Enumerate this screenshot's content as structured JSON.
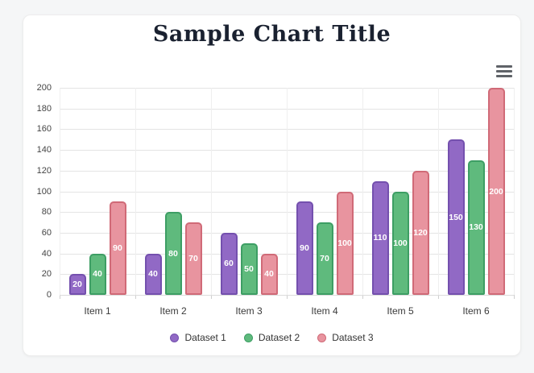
{
  "window": {
    "background_color": "#f5f6f7",
    "card_background_color": "#ffffff"
  },
  "header": {
    "title": "Sample Chart Title",
    "title_color": "#1a2130"
  },
  "toolbar": {
    "menu_icon": "hamburger-icon",
    "menu_icon_color": "#5f6368"
  },
  "chart_data": {
    "type": "bar",
    "title": "Sample Chart Title",
    "categories": [
      "Item 1",
      "Item 2",
      "Item 3",
      "Item 4",
      "Item 5",
      "Item 6"
    ],
    "series": [
      {
        "name": "Dataset 1",
        "color": "#9169c5",
        "border_color": "#7450ae",
        "values": [
          20,
          40,
          60,
          90,
          110,
          150
        ]
      },
      {
        "name": "Dataset 2",
        "color": "#5fba7d",
        "border_color": "#3d9e64",
        "values": [
          40,
          80,
          50,
          70,
          100,
          130
        ]
      },
      {
        "name": "Dataset 3",
        "color": "#e8949f",
        "border_color": "#d06a77",
        "values": [
          90,
          70,
          40,
          100,
          120,
          200
        ]
      }
    ],
    "xlabel": "",
    "ylabel": "",
    "ylim": [
      0,
      200
    ],
    "ytick_step": 20,
    "yticks": [
      0,
      20,
      40,
      60,
      80,
      100,
      120,
      140,
      160,
      180,
      200
    ],
    "grid": true,
    "value_labels": "shown in white, centered inside each bar",
    "legend_position": "bottom-center",
    "legend": [
      "Dataset 1",
      "Dataset 2",
      "Dataset 3"
    ]
  }
}
